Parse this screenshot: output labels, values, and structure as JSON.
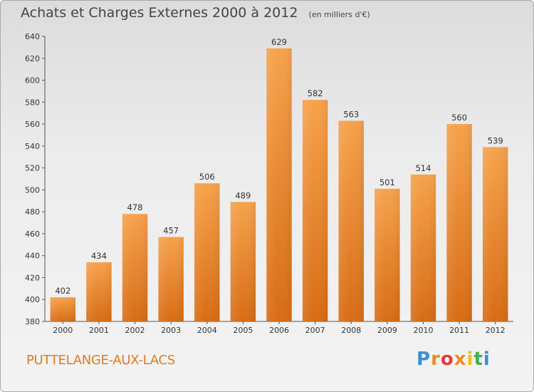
{
  "title": "Achats et Charges Externes 2000 à 2012",
  "unit": "(en milliers d'€)",
  "commune": "PUTTELANGE-AUX-LACS",
  "logo": {
    "text": "Proxiti",
    "colors": [
      "#3b8ed6",
      "#f08a24",
      "#e23b3b",
      "#3bb34a",
      "#f2c200"
    ]
  },
  "chart_data": {
    "type": "bar",
    "title": "Achats et Charges Externes 2000 à 2012",
    "subtitle": "(en milliers d'€)",
    "xlabel": "",
    "ylabel": "",
    "categories": [
      "2000",
      "2001",
      "2002",
      "2003",
      "2004",
      "2005",
      "2006",
      "2007",
      "2008",
      "2009",
      "2010",
      "2011",
      "2012"
    ],
    "values": [
      402,
      434,
      478,
      457,
      506,
      489,
      629,
      582,
      563,
      501,
      514,
      560,
      539
    ],
    "ylim": [
      380,
      640
    ],
    "yticks": [
      380,
      400,
      420,
      440,
      460,
      480,
      500,
      520,
      540,
      560,
      580,
      600,
      620,
      640
    ],
    "grid": false,
    "bar_color": "#f08a2a",
    "data_labels": true
  }
}
